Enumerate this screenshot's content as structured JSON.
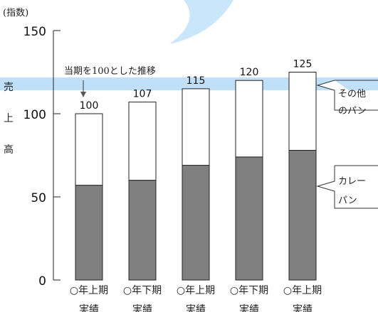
{
  "chart_data": {
    "type": "bar",
    "stacked": true,
    "ylabel_unit": "(指数)",
    "ylabel": [
      "売",
      "上",
      "高"
    ],
    "ylim": [
      0,
      150
    ],
    "yticks": [
      0,
      50,
      100,
      150
    ],
    "categories": [
      [
        "○年上期",
        "実績"
      ],
      [
        "○年下期",
        "実績"
      ],
      [
        "○年上期",
        "実績"
      ],
      [
        "○年下期",
        "実績"
      ],
      [
        "○年上期",
        "実績"
      ]
    ],
    "series": [
      {
        "name": "カレーパン",
        "values": [
          57,
          60,
          69,
          74,
          78
        ],
        "color": "#808080"
      },
      {
        "name": "その他のパン",
        "values": [
          43,
          47,
          46,
          46,
          47
        ],
        "color": "#ffffff"
      }
    ],
    "totals": [
      "100",
      "107",
      "115",
      "120",
      "125"
    ],
    "annotation": "当期を100とした推移",
    "legend": [
      {
        "lines": [
          "その他",
          "のパン"
        ],
        "series": "その他のパン"
      },
      {
        "lines": [
          "カレー",
          "パン"
        ],
        "series": "カレーパン"
      }
    ],
    "highlight_band_color": "#bfe0f8",
    "decoration_color": "#c9e6fa"
  }
}
